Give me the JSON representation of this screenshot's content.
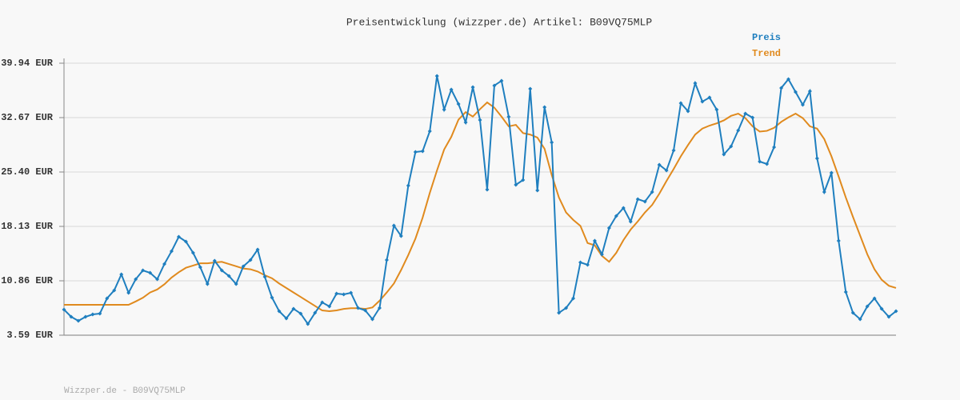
{
  "chart_data": {
    "type": "line",
    "title": "Preisentwicklung (wizzper.de) Artikel: B09VQ75MLP",
    "footer": "Wizzper.de - B09VQ75MLP",
    "categories": [
      null,
      null,
      null,
      null,
      null,
      null,
      null,
      null,
      null,
      null,
      null,
      null,
      null,
      null,
      null,
      null,
      null,
      null,
      null,
      null,
      null,
      null,
      null,
      null,
      null,
      null,
      null,
      null,
      null,
      null,
      null,
      null,
      null,
      null,
      null,
      null,
      null,
      null,
      null,
      null,
      null,
      null,
      null,
      null,
      null,
      null,
      null,
      null,
      null,
      null,
      null,
      null,
      null,
      null,
      null,
      null,
      null,
      null,
      null,
      null,
      null,
      null,
      null,
      null,
      null,
      null,
      null,
      null,
      null,
      null,
      null,
      null,
      null,
      null,
      null,
      null,
      null,
      null,
      null,
      null,
      null,
      null,
      null,
      null,
      null,
      null,
      null,
      null,
      null,
      null,
      null,
      null,
      null,
      null,
      null,
      null,
      null,
      null,
      null,
      null,
      null,
      null,
      null,
      null,
      null,
      null,
      null,
      null,
      null,
      null,
      null,
      null,
      null,
      null,
      null,
      null,
      null
    ],
    "series": [
      {
        "name": "Preis",
        "color": "#1f7fbf",
        "markers": true,
        "values": [
          7.01,
          6.05,
          5.51,
          6.05,
          6.37,
          6.48,
          8.51,
          9.58,
          11.72,
          9.26,
          11.07,
          12.25,
          11.93,
          11.07,
          13.11,
          14.82,
          16.74,
          16.1,
          14.6,
          12.68,
          10.43,
          13.53,
          12.25,
          11.5,
          10.43,
          12.79,
          13.64,
          15.03,
          11.39,
          8.62,
          6.8,
          5.84,
          7.12,
          6.48,
          5.09,
          6.58,
          7.97,
          7.44,
          9.15,
          9.04,
          9.26,
          7.23,
          6.9,
          5.73,
          7.23,
          13.64,
          18.24,
          16.85,
          23.58,
          28.07,
          28.18,
          30.85,
          38.23,
          33.74,
          36.41,
          34.49,
          32.03,
          36.73,
          32.35,
          23.05,
          36.95,
          37.59,
          32.78,
          23.69,
          24.33,
          36.52,
          22.94,
          34.06,
          29.36,
          6.58,
          7.23,
          8.51,
          13.32,
          13.0,
          16.21,
          14.39,
          17.92,
          19.52,
          20.59,
          18.77,
          21.77,
          21.45,
          22.73,
          26.36,
          25.61,
          28.29,
          34.6,
          33.53,
          37.27,
          34.81,
          35.35,
          33.74,
          27.75,
          28.82,
          30.96,
          33.21,
          32.67,
          26.79,
          26.47,
          28.72,
          36.63,
          37.8,
          36.09,
          34.38,
          36.2,
          27.22,
          22.73,
          25.29,
          16.21,
          9.36,
          6.58,
          5.73,
          7.44,
          8.51,
          7.12,
          6.05,
          6.8
        ]
      },
      {
        "name": "Trend",
        "color": "#e08a1e",
        "markers": false,
        "values": [
          7.65,
          7.65,
          7.65,
          7.65,
          7.65,
          7.65,
          7.65,
          7.65,
          7.65,
          7.65,
          8.1,
          8.6,
          9.3,
          9.7,
          10.4,
          11.3,
          12.0,
          12.6,
          12.9,
          13.2,
          13.2,
          13.3,
          13.4,
          13.1,
          12.8,
          12.5,
          12.4,
          12.1,
          11.6,
          11.2,
          10.5,
          9.9,
          9.3,
          8.7,
          8.1,
          7.5,
          6.9,
          6.8,
          6.9,
          7.1,
          7.2,
          7.2,
          7.1,
          7.3,
          8.2,
          9.3,
          10.5,
          12.3,
          14.3,
          16.5,
          19.3,
          22.6,
          25.6,
          28.4,
          30.1,
          32.4,
          33.4,
          32.8,
          33.8,
          34.7,
          34.0,
          32.8,
          31.5,
          31.7,
          30.6,
          30.4,
          30.0,
          28.5,
          25.0,
          22.0,
          20.0,
          19.0,
          18.2,
          15.9,
          15.6,
          14.2,
          13.4,
          14.6,
          16.3,
          17.7,
          18.8,
          20.0,
          21.0,
          22.5,
          24.2,
          25.8,
          27.5,
          29.0,
          30.4,
          31.2,
          31.6,
          31.9,
          32.3,
          32.9,
          33.2,
          32.6,
          31.5,
          30.8,
          30.9,
          31.3,
          32.1,
          32.7,
          33.2,
          32.6,
          31.5,
          31.2,
          29.8,
          27.5,
          24.8,
          22.0,
          19.4,
          16.9,
          14.4,
          12.4,
          11.0,
          10.2,
          9.9
        ]
      }
    ],
    "ylim": [
      3.59,
      39.94
    ],
    "yticks": [
      {
        "value": 3.59,
        "label": "3.59 EUR"
      },
      {
        "value": 10.86,
        "label": "10.86 EUR"
      },
      {
        "value": 18.13,
        "label": "18.13 EUR"
      },
      {
        "value": 25.4,
        "label": "25.40 EUR"
      },
      {
        "value": 32.67,
        "label": "32.67 EUR"
      },
      {
        "value": 39.94,
        "label": "39.94 EUR"
      }
    ],
    "grid": true
  }
}
